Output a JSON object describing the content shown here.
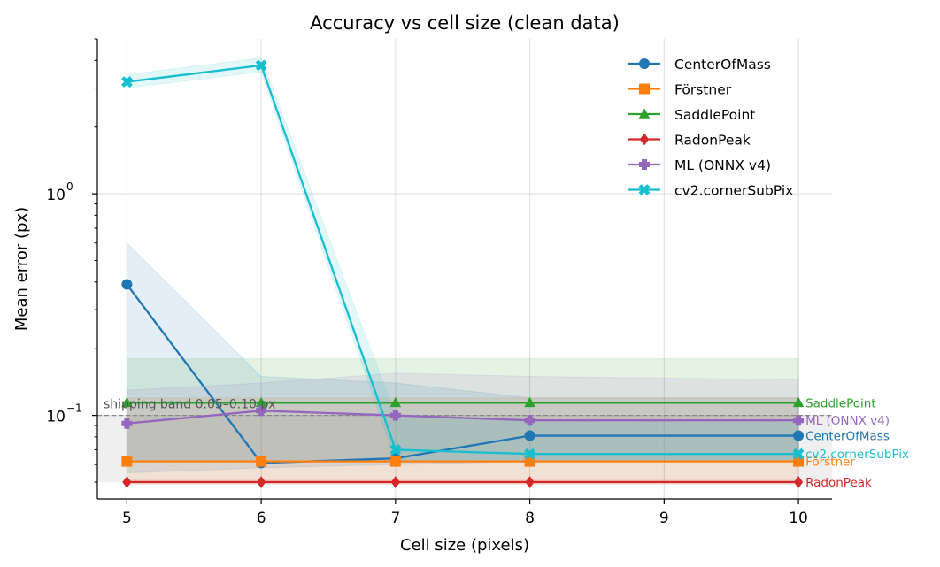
{
  "chart_data": {
    "type": "line",
    "title": "Accuracy vs cell size (clean data)",
    "xlabel": "Cell size (pixels)",
    "ylabel": "Mean error (px)",
    "yscale": "log",
    "xlim": [
      4.78,
      10.25
    ],
    "ylim": [
      0.042,
      5.0
    ],
    "x_ticks": [
      5,
      6,
      7,
      8,
      9,
      10
    ],
    "y_ticks": [
      {
        "value": 1.0,
        "base": "10",
        "exp": "0"
      },
      {
        "value": 0.1,
        "base": "10",
        "exp": "−1"
      }
    ],
    "grid": "x and major y",
    "legend_position": "top-right",
    "reference_band": {
      "label": "shipping band 0.05–0.10 px",
      "low": 0.05,
      "high": 0.1,
      "line": 0.1
    },
    "series": [
      {
        "name": "CenterOfMass",
        "color": "#1f77b4",
        "marker": "circle",
        "x": [
          5,
          6,
          7,
          8,
          10
        ],
        "values": [
          0.39,
          0.061,
          0.064,
          0.081,
          0.081
        ],
        "band_low": [
          0.055,
          0.058,
          0.06,
          0.062,
          0.062
        ],
        "band_high": [
          0.6,
          0.15,
          0.14,
          0.12,
          0.12
        ]
      },
      {
        "name": "Förstner",
        "color": "#ff7f0e",
        "marker": "square",
        "x": [
          5,
          6,
          7,
          8,
          10
        ],
        "values": [
          0.062,
          0.062,
          0.062,
          0.062,
          0.062
        ],
        "band_low": [
          0.05,
          0.05,
          0.05,
          0.05,
          0.05
        ],
        "band_high": [
          0.12,
          0.12,
          0.12,
          0.12,
          0.12
        ]
      },
      {
        "name": "SaddlePoint",
        "color": "#2ca02c",
        "marker": "triangle",
        "x": [
          5,
          6,
          7,
          8,
          10
        ],
        "values": [
          0.114,
          0.114,
          0.114,
          0.114,
          0.114
        ],
        "band_low": [
          0.062,
          0.062,
          0.062,
          0.062,
          0.062
        ],
        "band_high": [
          0.18,
          0.18,
          0.18,
          0.18,
          0.18
        ]
      },
      {
        "name": "RadonPeak",
        "color": "#d62728",
        "marker": "diamond",
        "x": [
          5,
          6,
          7,
          8,
          10
        ],
        "values": [
          0.05,
          0.05,
          0.05,
          0.05,
          0.05
        ],
        "band_low": [
          0.049,
          0.049,
          0.049,
          0.049,
          0.049
        ],
        "band_high": [
          0.051,
          0.051,
          0.051,
          0.051,
          0.051
        ]
      },
      {
        "name": "ML (ONNX v4)",
        "color": "#9467bd",
        "marker": "plus",
        "x": [
          5,
          6,
          7,
          8,
          10
        ],
        "values": [
          0.092,
          0.105,
          0.1,
          0.095,
          0.095
        ],
        "band_low": [
          0.062,
          0.062,
          0.062,
          0.062,
          0.062
        ],
        "band_high": [
          0.13,
          0.14,
          0.155,
          0.15,
          0.145
        ]
      },
      {
        "name": "cv2.cornerSubPix",
        "color": "#17becf",
        "marker": "x",
        "x": [
          5,
          6,
          7,
          8,
          10
        ],
        "values": [
          3.2,
          3.8,
          0.07,
          0.067,
          0.067
        ],
        "band_low": [
          3.0,
          3.55,
          0.062,
          0.062,
          0.062
        ],
        "band_high": [
          3.45,
          4.1,
          0.1,
          0.095,
          0.095
        ]
      }
    ]
  }
}
